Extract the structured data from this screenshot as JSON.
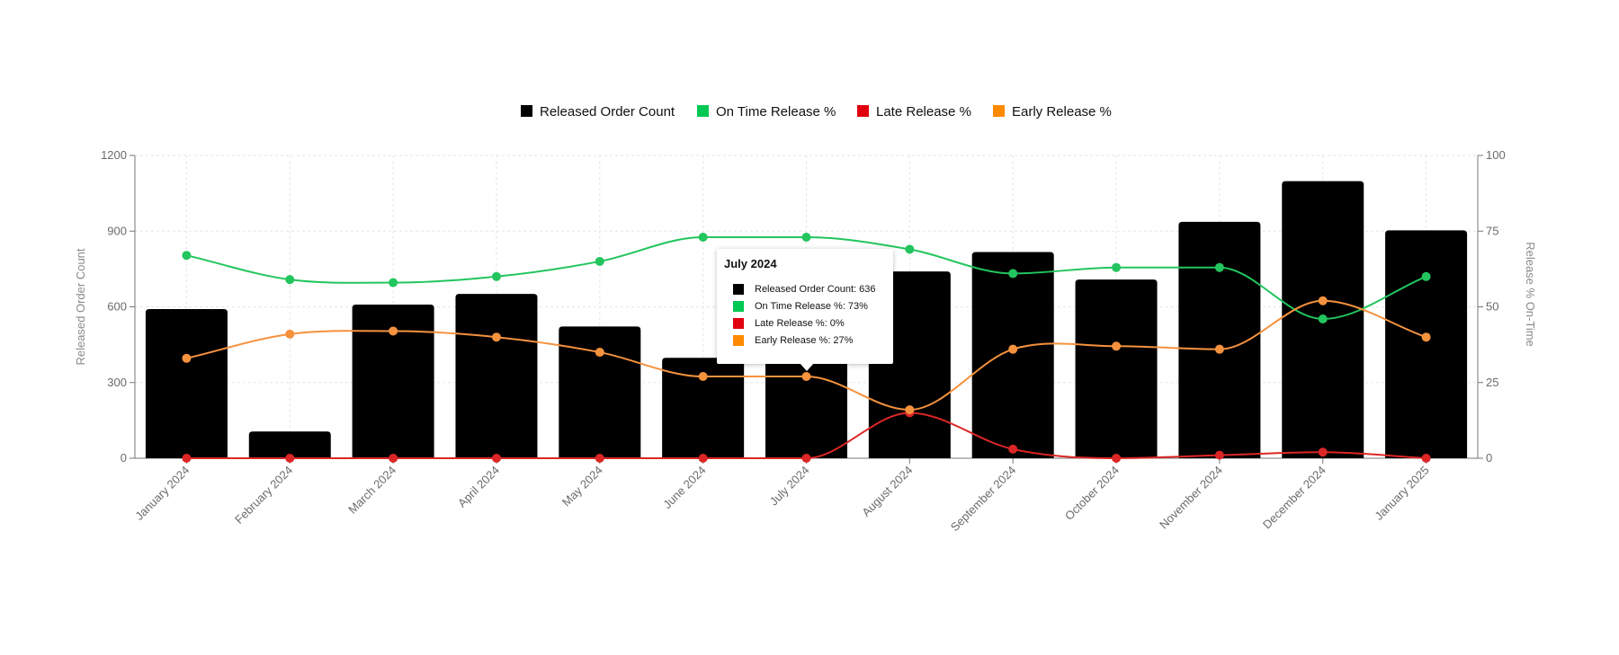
{
  "chart_data": {
    "type": "bar",
    "title": "",
    "categories": [
      "January 2024",
      "February 2024",
      "March 2024",
      "April 2024",
      "May 2024",
      "June 2024",
      "July 2024",
      "August 2024",
      "September 2024",
      "October 2024",
      "November 2024",
      "December 2024",
      "January 2025"
    ],
    "left_axis": {
      "label": "Released Order Count",
      "ylim": [
        0,
        1200
      ],
      "ticks": [
        "0",
        "300",
        "600",
        "900",
        "1200"
      ]
    },
    "right_axis": {
      "label": "Release % On-Time",
      "ylim": [
        0,
        100
      ],
      "ticks": [
        "0",
        "25",
        "50",
        "75",
        "100"
      ]
    },
    "grid": true,
    "legend_position": "top-center",
    "series": [
      {
        "name": "Released Order Count",
        "type": "bar",
        "axis": "left",
        "color": "#000000",
        "values": [
          591,
          106,
          609,
          651,
          522,
          398,
          636,
          740,
          817,
          708,
          937,
          1098,
          903
        ]
      },
      {
        "name": "On Time Release %",
        "type": "line",
        "axis": "right",
        "color": "#22c55e",
        "values": [
          67,
          59,
          58,
          60,
          65,
          73,
          73,
          69,
          61,
          63,
          63,
          46,
          60
        ]
      },
      {
        "name": "Late Release %",
        "type": "line",
        "axis": "right",
        "color": "#dc2626",
        "values": [
          0,
          0,
          0,
          0,
          0,
          0,
          0,
          15,
          3,
          0,
          1,
          2,
          0
        ]
      },
      {
        "name": "Early Release %",
        "type": "line",
        "axis": "right",
        "color": "#f5923e",
        "values": [
          33,
          41,
          42,
          40,
          35,
          27,
          27,
          16,
          36,
          37,
          36,
          52,
          40
        ]
      }
    ],
    "legend": [
      {
        "label": "Released Order Count",
        "color": "#000000"
      },
      {
        "label": "On Time Release %",
        "color": "#00c853"
      },
      {
        "label": "Late Release %",
        "color": "#e0000f"
      },
      {
        "label": "Early Release %",
        "color": "#ff8a00"
      }
    ],
    "tooltip": {
      "title": "July 2024",
      "rows": [
        {
          "text": "Released Order Count: 636",
          "color": "#000000"
        },
        {
          "text": "On Time Release %: 73%",
          "color": "#00c853"
        },
        {
          "text": "Late Release %: 0%",
          "color": "#e0000f"
        },
        {
          "text": "Early Release %: 27%",
          "color": "#ff8a00"
        }
      ]
    }
  }
}
